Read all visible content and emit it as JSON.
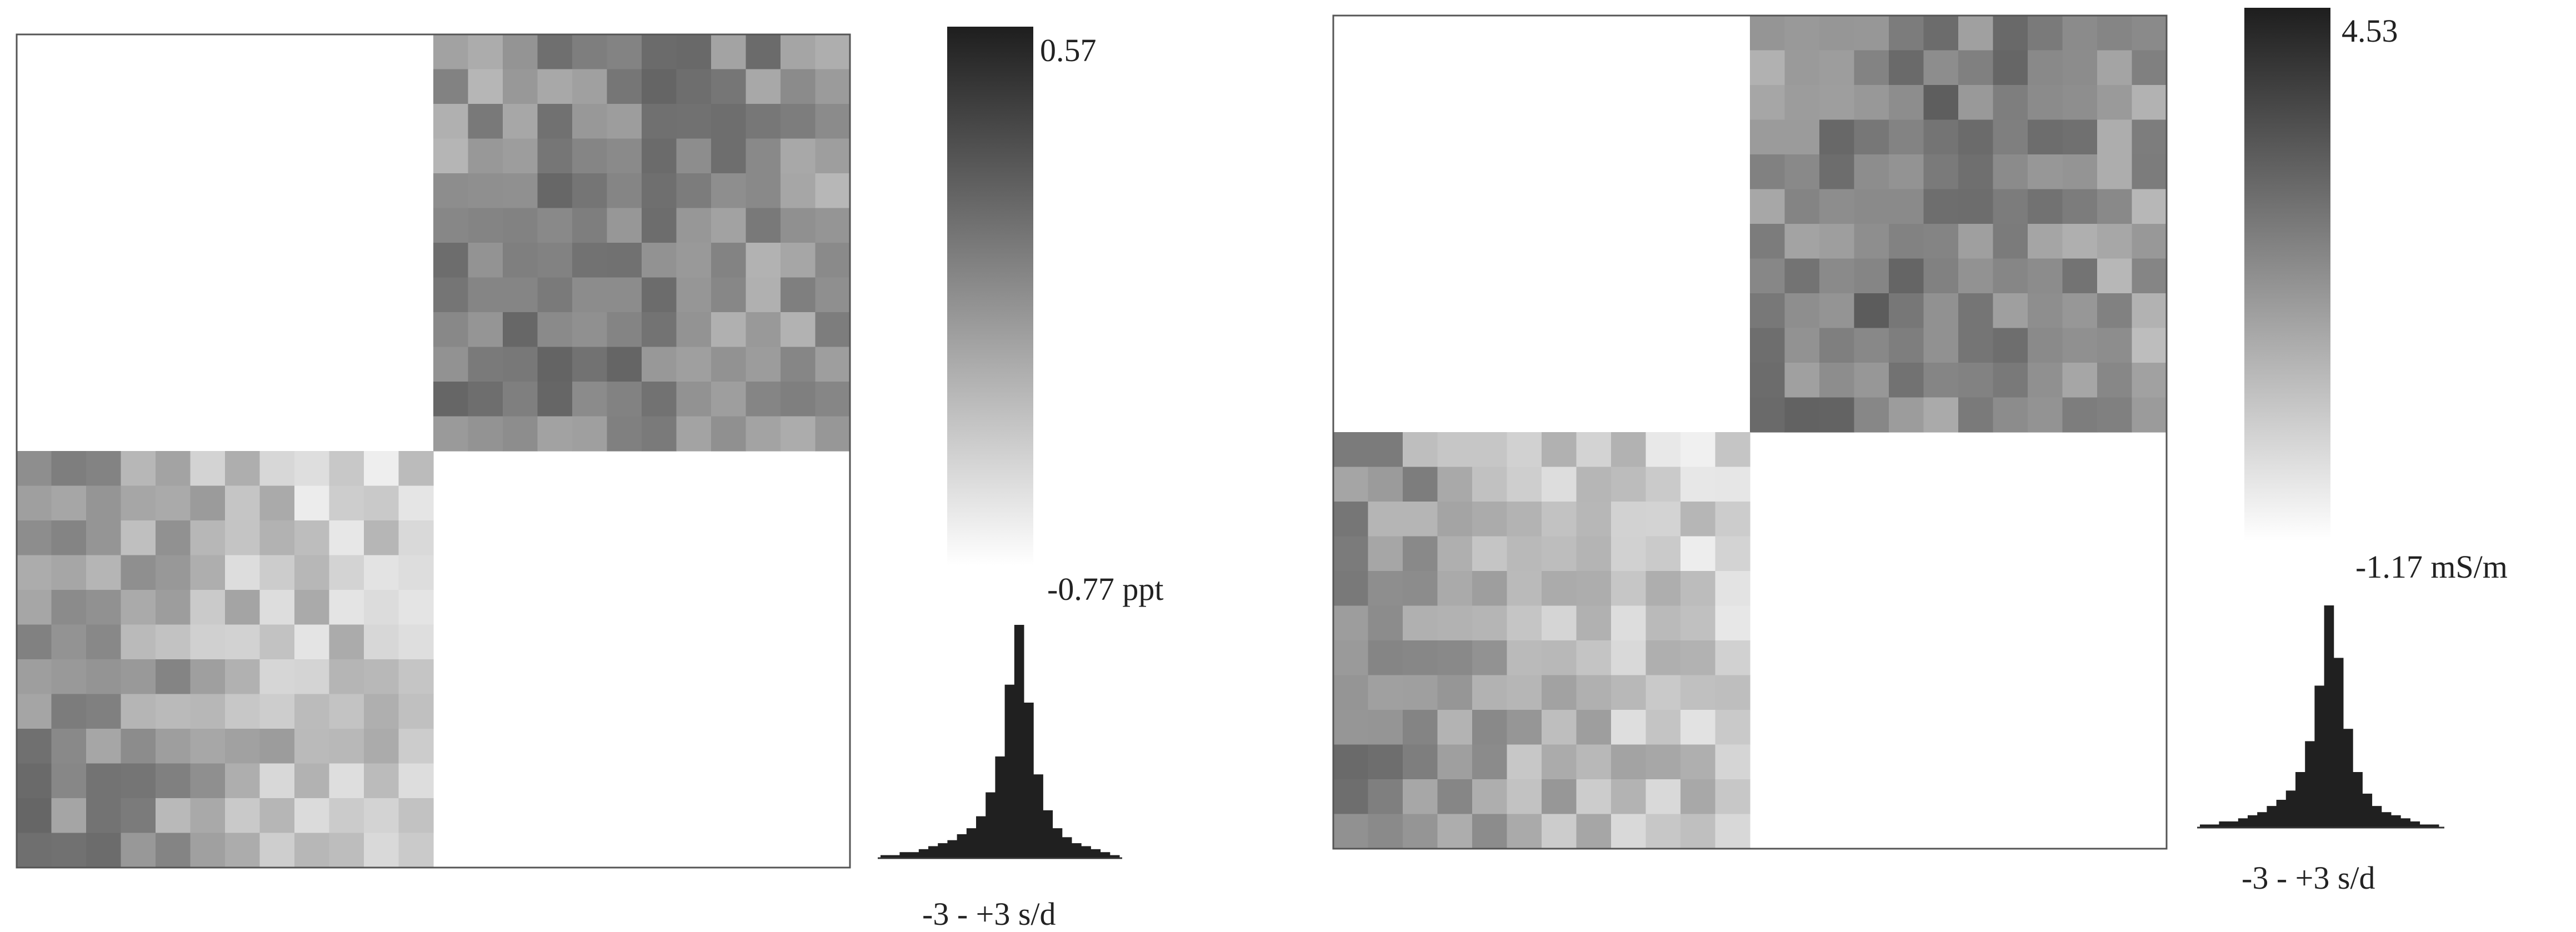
{
  "chart_data": [
    {
      "type": "heatmap",
      "title": "",
      "grid": [
        24,
        24
      ],
      "quadrants": [
        "empty",
        "filled",
        "filled",
        "empty"
      ],
      "colorbar": {
        "max_label": "0.57",
        "min_label": "-0.77 ppt",
        "scale": "grayscale"
      },
      "histogram": {
        "label": "-3 - +3 s/d",
        "counts": [
          1,
          1,
          2,
          2,
          3,
          4,
          5,
          6,
          8,
          10,
          14,
          22,
          34,
          58,
          78,
          52,
          28,
          16,
          10,
          7,
          5,
          4,
          3,
          2,
          1
        ]
      }
    },
    {
      "type": "heatmap",
      "title": "",
      "grid": [
        24,
        24
      ],
      "quadrants": [
        "empty",
        "filled",
        "filled",
        "empty"
      ],
      "colorbar": {
        "max_label": "4.53",
        "min_label": "-1.17 mS/m",
        "scale": "grayscale"
      },
      "histogram": {
        "label": "-3 - +3 s/d",
        "counts": [
          1,
          1,
          2,
          2,
          3,
          4,
          5,
          7,
          9,
          12,
          18,
          28,
          46,
          72,
          55,
          32,
          18,
          11,
          7,
          5,
          4,
          3,
          2,
          1,
          1
        ]
      }
    }
  ],
  "colors": {
    "ink": "#1a1a1a",
    "bar_dark": "#202020",
    "frame": "#555555"
  }
}
